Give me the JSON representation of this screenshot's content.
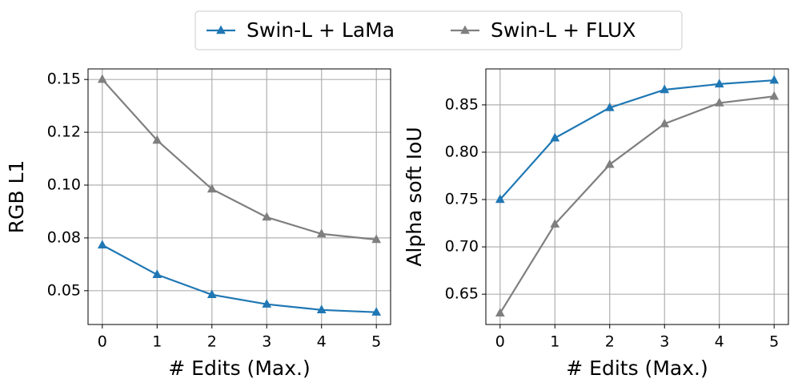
{
  "chart_data": [
    {
      "type": "line",
      "xlabel": "# Edits (Max.)",
      "ylabel": "RGB L1",
      "x": [
        0,
        1,
        2,
        3,
        4,
        5
      ],
      "xlim": [
        -0.26,
        5.26
      ],
      "xticks": [
        0,
        1,
        2,
        3,
        4,
        5
      ],
      "ylim": [
        0.034,
        0.155
      ],
      "yticks": [
        0.15,
        {
          "value": 0.125,
          "label": "0.12"
        },
        {
          "value": 0.1,
          "label": "0.10"
        },
        {
          "value": 0.075,
          "label": "0.08"
        },
        0.05
      ],
      "grid": true,
      "series": [
        {
          "name": "Swin-L + LaMa",
          "color": "#1f77b4",
          "values": [
            0.0716,
            0.0576,
            0.0481,
            0.0436,
            0.0409,
            0.0398
          ]
        },
        {
          "name": "Swin-L + FLUX",
          "color": "#7f7f7f",
          "values": [
            0.15,
            0.1212,
            0.0981,
            0.0848,
            0.0769,
            0.0742
          ]
        }
      ]
    },
    {
      "type": "line",
      "xlabel": "# Edits (Max.)",
      "ylabel": "Alpha soft IoU",
      "x": [
        0,
        1,
        2,
        3,
        4,
        5
      ],
      "xlim": [
        -0.26,
        5.26
      ],
      "xticks": [
        0,
        1,
        2,
        3,
        4,
        5
      ],
      "ylim": [
        0.618,
        0.888
      ],
      "yticks": [
        0.85,
        {
          "value": 0.8,
          "label": "0.80"
        },
        0.75,
        {
          "value": 0.7,
          "label": "0.70"
        },
        0.65
      ],
      "grid": true,
      "series": [
        {
          "name": "Swin-L + LaMa",
          "color": "#1f77b4",
          "values": [
            0.75,
            0.815,
            0.847,
            0.866,
            0.872,
            0.876
          ]
        },
        {
          "name": "Swin-L + FLUX",
          "color": "#7f7f7f",
          "values": [
            0.63,
            0.724,
            0.787,
            0.83,
            0.852,
            0.859
          ]
        }
      ]
    }
  ]
}
